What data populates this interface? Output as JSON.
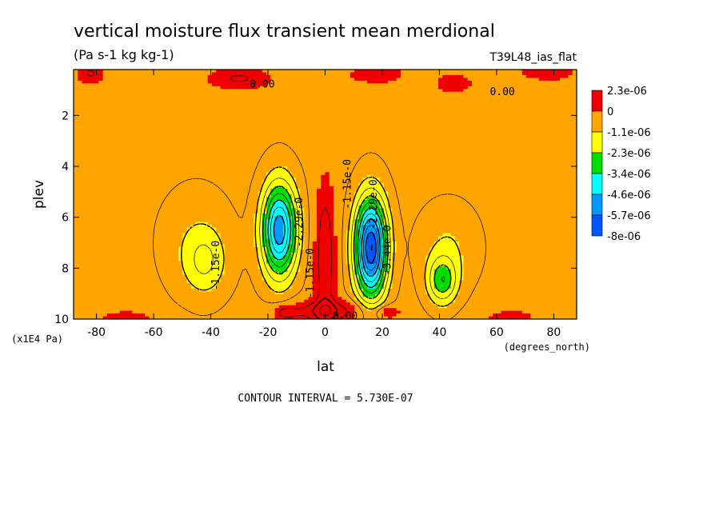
{
  "chart_data": {
    "type": "heatmap",
    "title": "vertical moisture flux transient mean merdional",
    "subtitle": "(Pa s-1 kg kg-1)",
    "dataset_label": "T39L48_ias_flat",
    "xlabel": "lat",
    "x_units": "(degrees_north)",
    "ylabel": "plev",
    "y_units": "(x1E4 Pa)",
    "xlim": [
      -88,
      88
    ],
    "ylim": [
      0.2,
      10
    ],
    "y_inverted": true,
    "x_ticks": [
      "-80",
      "-60",
      "-40",
      "-20",
      "0",
      "20",
      "40",
      "60",
      "80"
    ],
    "y_ticks": [
      "2",
      "4",
      "6",
      "8",
      "10"
    ],
    "contour_interval": "CONTOUR INTERVAL = 5.730E-07",
    "legend": {
      "placement": "right",
      "levels": [
        "2.3e-06",
        "0",
        "-1.1e-06",
        "-2.3e-06",
        "-3.4e-06",
        "-4.6e-06",
        "-5.7e-06",
        "-8e-06"
      ],
      "colors": [
        "#ee0000",
        "#ffa500",
        "#ffff00",
        "#00dd00",
        "#00ffff",
        "#0099ff",
        "#0055ff"
      ]
    },
    "contour_labels": [
      {
        "text": "0.00",
        "lat": -22,
        "plev": 0.8
      },
      {
        "text": "0.00",
        "lat": 62,
        "plev": 1.1
      },
      {
        "text": "0.00",
        "lat": 7,
        "plev": 9.9
      },
      {
        "text": "-1.15e-0",
        "lat": -38,
        "plev": 7.9
      },
      {
        "text": "-2.29e-0",
        "lat": -9,
        "plev": 6.2
      },
      {
        "text": "-1.15e-0",
        "lat": -5,
        "plev": 8.2
      },
      {
        "text": "-1.15e-0",
        "lat": 8,
        "plev": 4.7
      },
      {
        "text": "-2.29e-0",
        "lat": 17,
        "plev": 5.5
      },
      {
        "text": "-3.44e-0",
        "lat": 22,
        "plev": 7.3
      }
    ],
    "features": [
      {
        "name": "southern-tropical-minimum",
        "lat": -16,
        "plev": 6.5,
        "min_level": "-4.6e-06"
      },
      {
        "name": "northern-tropical-minimum",
        "lat": 16,
        "plev": 7.2,
        "min_level": "-5.7e-06"
      },
      {
        "name": "northern-subtropical-minimum",
        "lat": 41,
        "plev": 8.5,
        "min_level": "-2.3e-06"
      },
      {
        "name": "southern-subtropical-minimum",
        "lat": -42,
        "plev": 7.8,
        "min_level": "-1.1e-06"
      }
    ]
  }
}
